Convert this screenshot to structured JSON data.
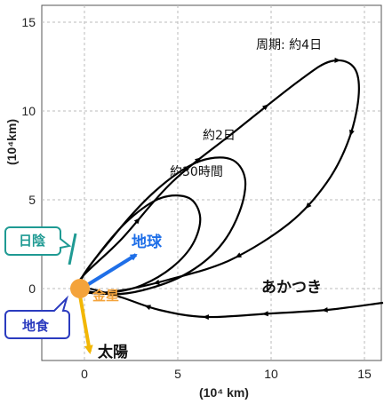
{
  "axes": {
    "x_unit": "(10⁴ km)",
    "y_unit": "(10⁴km)",
    "x_ticks": [
      "0",
      "5",
      "10",
      "15"
    ],
    "y_ticks": [
      "0",
      "5",
      "10",
      "15"
    ]
  },
  "labels": {
    "orbit_4day": "周期: 約4日",
    "orbit_2day": "約2日",
    "orbit_30h": "約30時間",
    "spacecraft": "あかつき",
    "earth": "地球",
    "venus": "金星",
    "sun": "太陽",
    "shadow": "日陰",
    "occultation": "地食"
  },
  "colors": {
    "earth_arrow": "#1f6fe8",
    "sun_arrow": "#f2b705",
    "venus": "#f4a33b",
    "shadow_box": "#1f9a93",
    "occultation_box": "#2b3bbf"
  },
  "chart_data": {
    "type": "line",
    "xlim": [
      -2,
      16
    ],
    "ylim": [
      -4,
      16
    ],
    "grid": true,
    "series": [
      {
        "label": "周期: 約4日",
        "x": [
          -0.3,
          2,
          4.7,
          8,
          11.5,
          13.2,
          14.4,
          14.7,
          14.2,
          13,
          11,
          7.8,
          4.5,
          2,
          0.4,
          -0.3
        ],
        "y": [
          0.4,
          2.8,
          6,
          8.8,
          11.7,
          12.8,
          12.5,
          11,
          8.5,
          6,
          3.7,
          1.6,
          0.5,
          -0.1,
          -0.2,
          0.4
        ]
      },
      {
        "label": "約2日",
        "x": [
          -0.3,
          1.6,
          3.8,
          6,
          7.8,
          8.6,
          8.3,
          7.2,
          5.4,
          3.1,
          1.2,
          -0.2
        ],
        "y": [
          0.2,
          3,
          5.5,
          7.1,
          7.3,
          6.2,
          4.3,
          2.3,
          0.8,
          -0.1,
          -0.3,
          0.2
        ]
      },
      {
        "label": "約30時間",
        "x": [
          -0.3,
          0.8,
          2.4,
          4.1,
          5.6,
          6.2,
          5.8,
          4.7,
          3.1,
          1.6,
          0.2,
          -0.3
        ],
        "y": [
          0.2,
          2,
          3.9,
          5.1,
          5.1,
          4,
          2.5,
          1.2,
          0.2,
          -0.2,
          -0.2,
          0.2
        ]
      },
      {
        "label": "あかつき",
        "x": [
          0.3,
          2,
          4,
          6.5,
          10,
          13,
          16
        ],
        "y": [
          0,
          -0.5,
          -1.2,
          -1.6,
          -1.4,
          -1.2,
          -0.8
        ]
      }
    ]
  }
}
